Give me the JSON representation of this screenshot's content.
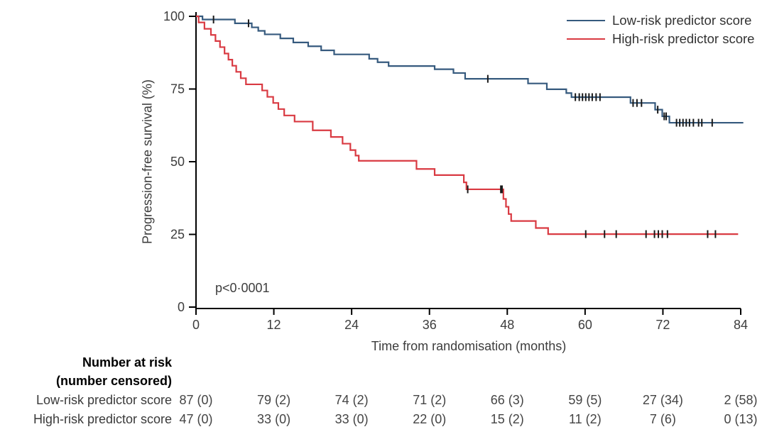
{
  "chart_data": {
    "type": "line",
    "subtype": "kaplan-meier-step",
    "title": "",
    "xlabel": "Time from randomisation (months)",
    "ylabel": "Progression-free survival (%)",
    "annotation": "p<0·0001",
    "xlim": [
      0,
      84
    ],
    "ylim": [
      0,
      100
    ],
    "x_ticks": [
      0,
      12,
      24,
      36,
      48,
      60,
      72,
      84
    ],
    "y_ticks": [
      0,
      25,
      50,
      75,
      100
    ],
    "grid": false,
    "legend_position": "top-right",
    "axis_color": "#000000",
    "censor_color": "#1a1a1a",
    "series": [
      {
        "name": "Low-risk predictor score",
        "color": "#365a7e",
        "step_points": [
          [
            0,
            100
          ],
          [
            1,
            98.9
          ],
          [
            6,
            97.6
          ],
          [
            8.6,
            96.2
          ],
          [
            9.6,
            95.0
          ],
          [
            10.6,
            93.8
          ],
          [
            13,
            92.4
          ],
          [
            15,
            91.0
          ],
          [
            17.3,
            89.7
          ],
          [
            19.3,
            88.3
          ],
          [
            21.3,
            86.9
          ],
          [
            26.7,
            85.4
          ],
          [
            28,
            84.2
          ],
          [
            29.7,
            82.9
          ],
          [
            36.8,
            81.8
          ],
          [
            39.7,
            80.5
          ],
          [
            41.5,
            78.5
          ],
          [
            51.2,
            76.9
          ],
          [
            54.1,
            74.9
          ],
          [
            57.1,
            73.6
          ],
          [
            57.9,
            72.2
          ],
          [
            67,
            70.2
          ],
          [
            70.8,
            67.9
          ],
          [
            71.9,
            65.6
          ],
          [
            73,
            63.4
          ],
          [
            84.4,
            63.4
          ]
        ],
        "censor_marks": [
          [
            2.7,
            98.9
          ],
          [
            8.1,
            97.6
          ],
          [
            45,
            78.5
          ],
          [
            58.5,
            72.2
          ],
          [
            59.1,
            72.2
          ],
          [
            59.6,
            72.2
          ],
          [
            60.1,
            72.2
          ],
          [
            60.6,
            72.2
          ],
          [
            61.1,
            72.2
          ],
          [
            61.7,
            72.2
          ],
          [
            62.3,
            72.2
          ],
          [
            67.4,
            70.2
          ],
          [
            68.0,
            70.2
          ],
          [
            68.7,
            70.2
          ],
          [
            71.2,
            67.9
          ],
          [
            72.2,
            65.6
          ],
          [
            72.5,
            65.6
          ],
          [
            74.1,
            63.4
          ],
          [
            74.6,
            63.4
          ],
          [
            75.1,
            63.4
          ],
          [
            75.6,
            63.4
          ],
          [
            76.1,
            63.4
          ],
          [
            76.7,
            63.4
          ],
          [
            77.5,
            63.4
          ],
          [
            78.0,
            63.4
          ],
          [
            79.6,
            63.4
          ]
        ]
      },
      {
        "name": "High-risk predictor score",
        "color": "#d93a42",
        "step_points": [
          [
            0,
            100
          ],
          [
            0.4,
            97.9
          ],
          [
            1.3,
            95.7
          ],
          [
            2.3,
            93.6
          ],
          [
            3,
            91.5
          ],
          [
            3.7,
            89.4
          ],
          [
            4.4,
            87.2
          ],
          [
            5,
            85.1
          ],
          [
            5.6,
            83.0
          ],
          [
            6.2,
            80.9
          ],
          [
            6.9,
            78.7
          ],
          [
            7.7,
            76.6
          ],
          [
            10.2,
            74.5
          ],
          [
            11,
            72.3
          ],
          [
            11.9,
            70.2
          ],
          [
            12.7,
            68.1
          ],
          [
            13.6,
            65.9
          ],
          [
            15.2,
            63.8
          ],
          [
            18,
            60.8
          ],
          [
            20.8,
            58.5
          ],
          [
            22.6,
            56.2
          ],
          [
            23.8,
            54.0
          ],
          [
            24.6,
            52.1
          ],
          [
            25.1,
            50.3
          ],
          [
            34,
            47.5
          ],
          [
            36.8,
            45.4
          ],
          [
            41.3,
            42.9
          ],
          [
            41.7,
            40.5
          ],
          [
            47.4,
            37.2
          ],
          [
            47.8,
            34.5
          ],
          [
            48.2,
            32.0
          ],
          [
            48.6,
            29.6
          ],
          [
            52.4,
            27.2
          ],
          [
            54.3,
            25.1
          ],
          [
            83.6,
            25.1
          ]
        ],
        "censor_marks": [
          [
            41.9,
            40.5
          ],
          [
            47.0,
            40.5
          ],
          [
            47.2,
            40.5
          ],
          [
            60.1,
            25.1
          ],
          [
            63.0,
            25.1
          ],
          [
            64.8,
            25.1
          ],
          [
            69.4,
            25.1
          ],
          [
            70.7,
            25.1
          ],
          [
            71.3,
            25.1
          ],
          [
            71.9,
            25.1
          ],
          [
            72.7,
            25.1
          ],
          [
            78.9,
            25.1
          ],
          [
            80.1,
            25.1
          ]
        ]
      }
    ],
    "number_at_risk": {
      "header_line1": "Number at risk",
      "header_line2": "(number censored)",
      "times": [
        0,
        12,
        24,
        36,
        48,
        60,
        72,
        84
      ],
      "rows": [
        {
          "label": "Low-risk predictor score",
          "values": [
            "87 (0)",
            "79 (2)",
            "74 (2)",
            "71 (2)",
            "66 (3)",
            "59 (5)",
            "27 (34)",
            "2 (58)"
          ]
        },
        {
          "label": "High-risk predictor score",
          "values": [
            "47 (0)",
            "33 (0)",
            "33 (0)",
            "22 (0)",
            "15 (2)",
            "11 (2)",
            "7 (6)",
            "0 (13)"
          ]
        }
      ]
    }
  }
}
